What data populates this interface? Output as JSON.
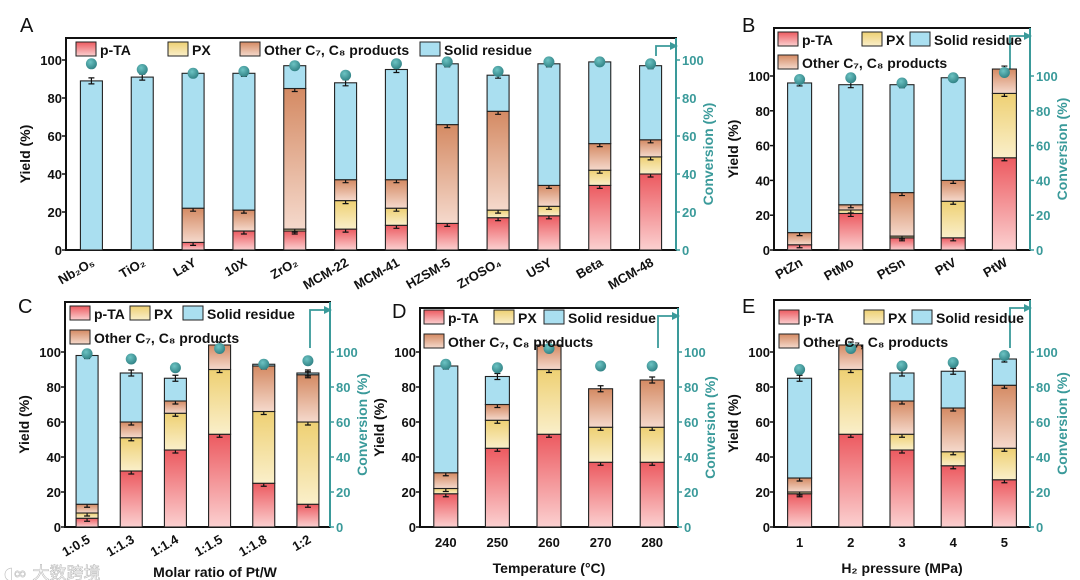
{
  "colors": {
    "pta": "#ec5d62",
    "px": "#f0d57c",
    "other": "#d9946d",
    "solid": "#aadff0",
    "conversion": "#3a9a9a"
  },
  "legend_labels": [
    "p-TA",
    "PX",
    "Other C₇, C₈ products",
    "Solid residue"
  ],
  "watermark": "大数跨境",
  "chart_data": [
    {
      "panel": "A",
      "type": "bar",
      "stacked": true,
      "ylabel": "Yield (%)",
      "y2label": "Conversion (%)",
      "xlabel": "",
      "ylim": [
        0,
        110
      ],
      "yticks": [
        "0",
        "20",
        "40",
        "60",
        "80",
        "100"
      ],
      "y2ticks": [
        "0",
        "20",
        "40",
        "60",
        "80",
        "100"
      ],
      "legend": "top (single row)",
      "categories": [
        "Nb₂O₅",
        "TiO₂",
        "LaY",
        "10X",
        "ZrO₂",
        "MCM-22",
        "MCM-41",
        "HZSM-5",
        "ZrOSO₄",
        "USY",
        "Beta",
        "MCM-48"
      ],
      "series": [
        {
          "name": "p-TA",
          "values": [
            0,
            0,
            4,
            10,
            10,
            11,
            13,
            14,
            17,
            18,
            34,
            40
          ]
        },
        {
          "name": "PX",
          "values": [
            0,
            0,
            0,
            0,
            1,
            15,
            9,
            0,
            4,
            5,
            8,
            9
          ]
        },
        {
          "name": "Other C7, C8 products",
          "values": [
            0,
            0,
            18,
            11,
            74,
            11,
            15,
            52,
            52,
            11,
            14,
            9
          ]
        },
        {
          "name": "Solid residue",
          "values": [
            89,
            91,
            71,
            72,
            12,
            51,
            58,
            32,
            19,
            64,
            43,
            39
          ]
        }
      ],
      "conversion": [
        98,
        95,
        93,
        94,
        97,
        92,
        98,
        99,
        94,
        99,
        99,
        98
      ]
    },
    {
      "panel": "B",
      "type": "bar",
      "stacked": true,
      "ylabel": "Yield (%)",
      "y2label": "Conversion (%)",
      "xlabel": "",
      "ylim": [
        0,
        128
      ],
      "yticks": [
        "0",
        "20",
        "40",
        "60",
        "80",
        "100"
      ],
      "y2ticks": [
        "0",
        "20",
        "40",
        "60",
        "80",
        "100"
      ],
      "legend": "top (two rows)",
      "categories": [
        "PtZn",
        "PtMo",
        "PtSn",
        "PtV",
        "PtW"
      ],
      "series": [
        {
          "name": "p-TA",
          "values": [
            3,
            21,
            7,
            7,
            53
          ]
        },
        {
          "name": "PX",
          "values": [
            0,
            2,
            1,
            21,
            37
          ]
        },
        {
          "name": "Other C7, C8 products",
          "values": [
            7,
            3,
            25,
            12,
            14
          ]
        },
        {
          "name": "Solid residue",
          "values": [
            86,
            69,
            62,
            59,
            0
          ]
        }
      ],
      "conversion": [
        98,
        99,
        96,
        99,
        102
      ]
    },
    {
      "panel": "C",
      "type": "bar",
      "stacked": true,
      "ylabel": "Yield (%)",
      "y2label": "Conversion (%)",
      "xlabel": "Molar ratio of Pt/W",
      "ylim": [
        0,
        128
      ],
      "yticks": [
        "0",
        "20",
        "40",
        "60",
        "80",
        "100"
      ],
      "y2ticks": [
        "0",
        "20",
        "40",
        "60",
        "80",
        "100"
      ],
      "legend": "top (two rows)",
      "categories": [
        "1:0.5",
        "1:1.3",
        "1:1.4",
        "1:1.5",
        "1:1.8",
        "1:2"
      ],
      "series": [
        {
          "name": "p-TA",
          "values": [
            5,
            32,
            44,
            53,
            25,
            13
          ]
        },
        {
          "name": "PX",
          "values": [
            3,
            19,
            21,
            37,
            41,
            47
          ]
        },
        {
          "name": "Other C7, C8 products",
          "values": [
            5,
            9,
            7,
            14,
            26,
            27
          ]
        },
        {
          "name": "Solid residue",
          "values": [
            85,
            28,
            13,
            0,
            1,
            1
          ]
        }
      ],
      "conversion": [
        99,
        96,
        91,
        102,
        93,
        95
      ]
    },
    {
      "panel": "D",
      "type": "bar",
      "stacked": true,
      "ylabel": "Yield (%)",
      "y2label": "Conversion (%)",
      "xlabel": "Temperature (°C)",
      "ylim": [
        0,
        128
      ],
      "yticks": [
        "0",
        "20",
        "40",
        "60",
        "80",
        "100"
      ],
      "y2ticks": [
        "0",
        "20",
        "40",
        "60",
        "80",
        "100"
      ],
      "legend": "top (two rows)",
      "categories": [
        "240",
        "250",
        "260",
        "270",
        "280"
      ],
      "series": [
        {
          "name": "p-TA",
          "values": [
            19,
            45,
            53,
            37,
            37
          ]
        },
        {
          "name": "PX",
          "values": [
            3,
            16,
            37,
            20,
            20
          ]
        },
        {
          "name": "Other C7, C8 products",
          "values": [
            9,
            9,
            14,
            22,
            27
          ]
        },
        {
          "name": "Solid residue",
          "values": [
            61,
            16,
            0,
            0,
            0
          ]
        }
      ],
      "conversion": [
        93,
        91,
        102,
        92,
        92
      ]
    },
    {
      "panel": "E",
      "type": "bar",
      "stacked": true,
      "ylabel": "Yield (%)",
      "y2label": "Conversion (%)",
      "xlabel": "H₂ pressure (MPa)",
      "ylim": [
        0,
        128
      ],
      "yticks": [
        "0",
        "20",
        "40",
        "60",
        "80",
        "100"
      ],
      "y2ticks": [
        "0",
        "20",
        "40",
        "60",
        "80",
        "100"
      ],
      "legend": "top (two rows)",
      "categories": [
        "1",
        "2",
        "3",
        "4",
        "5"
      ],
      "series": [
        {
          "name": "p-TA",
          "values": [
            19,
            53,
            44,
            35,
            27
          ]
        },
        {
          "name": "PX",
          "values": [
            1,
            37,
            9,
            8,
            18
          ]
        },
        {
          "name": "Other C7, C8 products",
          "values": [
            8,
            14,
            19,
            25,
            36
          ]
        },
        {
          "name": "Solid residue",
          "values": [
            57,
            0,
            16,
            21,
            15
          ]
        }
      ],
      "conversion": [
        90,
        102,
        92,
        94,
        98
      ]
    }
  ]
}
